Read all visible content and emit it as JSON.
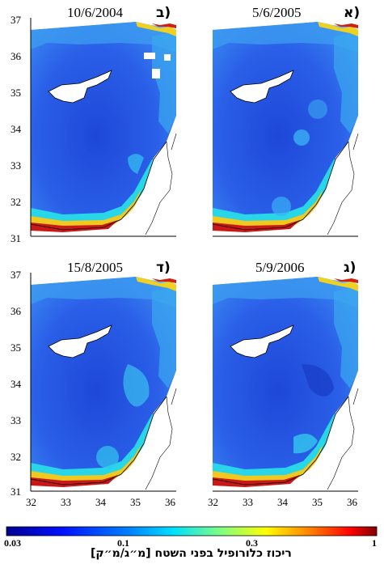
{
  "panels": [
    {
      "id": "top-left",
      "date": "10/6/2004",
      "letter": "(ב"
    },
    {
      "id": "top-right",
      "date": "5/6/2005",
      "letter": "(א"
    },
    {
      "id": "bottom-left",
      "date": "15/8/2005",
      "letter": "(ד"
    },
    {
      "id": "bottom-right",
      "date": "5/9/2006",
      "letter": "(ג"
    }
  ],
  "axes": {
    "y_ticks_top": [
      "37",
      "36",
      "35",
      "34",
      "33",
      "32",
      "31"
    ],
    "y_ticks_bottom": [
      "37",
      "36",
      "35",
      "34",
      "33",
      "32",
      "31"
    ],
    "x_ticks_left": [
      "32",
      "33",
      "34",
      "35",
      "36"
    ],
    "x_ticks_right": [
      "32",
      "33",
      "34",
      "35",
      "36"
    ]
  },
  "colorbar": {
    "ticks": [
      "0.03",
      "0.1",
      "0.3",
      "1"
    ],
    "title": "ריכוז כלורופיל בפני השטח [מ״ג/מ״ק]",
    "scale": "log",
    "range": [
      0.03,
      1
    ]
  },
  "colors": {
    "sea_dark": "#1f46d6",
    "sea_mid": "#2f6ef0",
    "sea_light": "#3fb0f5",
    "cyan": "#29e0e8",
    "coast_yellow": "#f0d020",
    "coast_red": "#c01010",
    "land": "#ffffff"
  }
}
